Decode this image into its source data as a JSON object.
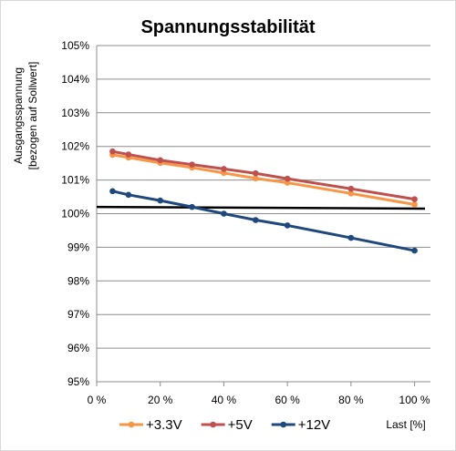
{
  "chart_data": {
    "type": "line",
    "title": "Spannungsstabilität",
    "ylabel_lines": [
      "Ausgangsspannung",
      "[bezogen auf Sollwert]"
    ],
    "xlabel": "Last [%]",
    "x_unit": "%",
    "xlim": [
      0,
      105
    ],
    "ylim": [
      95,
      105
    ],
    "x_ticks": [
      0,
      20,
      40,
      60,
      80,
      100
    ],
    "x_tick_labels": [
      "0 %",
      "20 %",
      "40 %",
      "60 %",
      "80 %",
      "100 %"
    ],
    "y_ticks": [
      95,
      96,
      97,
      98,
      99,
      100,
      101,
      102,
      103,
      104,
      105
    ],
    "y_tick_labels": [
      "95%",
      "96%",
      "97%",
      "98%",
      "99%",
      "100%",
      "101%",
      "102%",
      "103%",
      "104%",
      "105%"
    ],
    "grid": "horizontal major",
    "legend_position": "bottom",
    "reference_line": {
      "y_start": 100.2,
      "y_end": 100.15,
      "color": "#000000"
    },
    "series": [
      {
        "name": "+3.3V",
        "color": "#F79646",
        "x": [
          5,
          10,
          20,
          30,
          40,
          50,
          60,
          80,
          100
        ],
        "y": [
          101.75,
          101.67,
          101.51,
          101.37,
          101.21,
          101.05,
          100.92,
          100.6,
          100.27
        ]
      },
      {
        "name": "+5V",
        "color": "#C0504D",
        "x": [
          5,
          10,
          20,
          30,
          40,
          50,
          60,
          80,
          100
        ],
        "y": [
          101.85,
          101.76,
          101.59,
          101.46,
          101.33,
          101.2,
          101.04,
          100.74,
          100.43
        ]
      },
      {
        "name": "+12V",
        "color": "#1F497D",
        "x": [
          5,
          10,
          20,
          30,
          40,
          50,
          60,
          80,
          100
        ],
        "y": [
          100.67,
          100.56,
          100.39,
          100.2,
          100.0,
          99.81,
          99.65,
          99.28,
          98.9
        ]
      }
    ]
  }
}
